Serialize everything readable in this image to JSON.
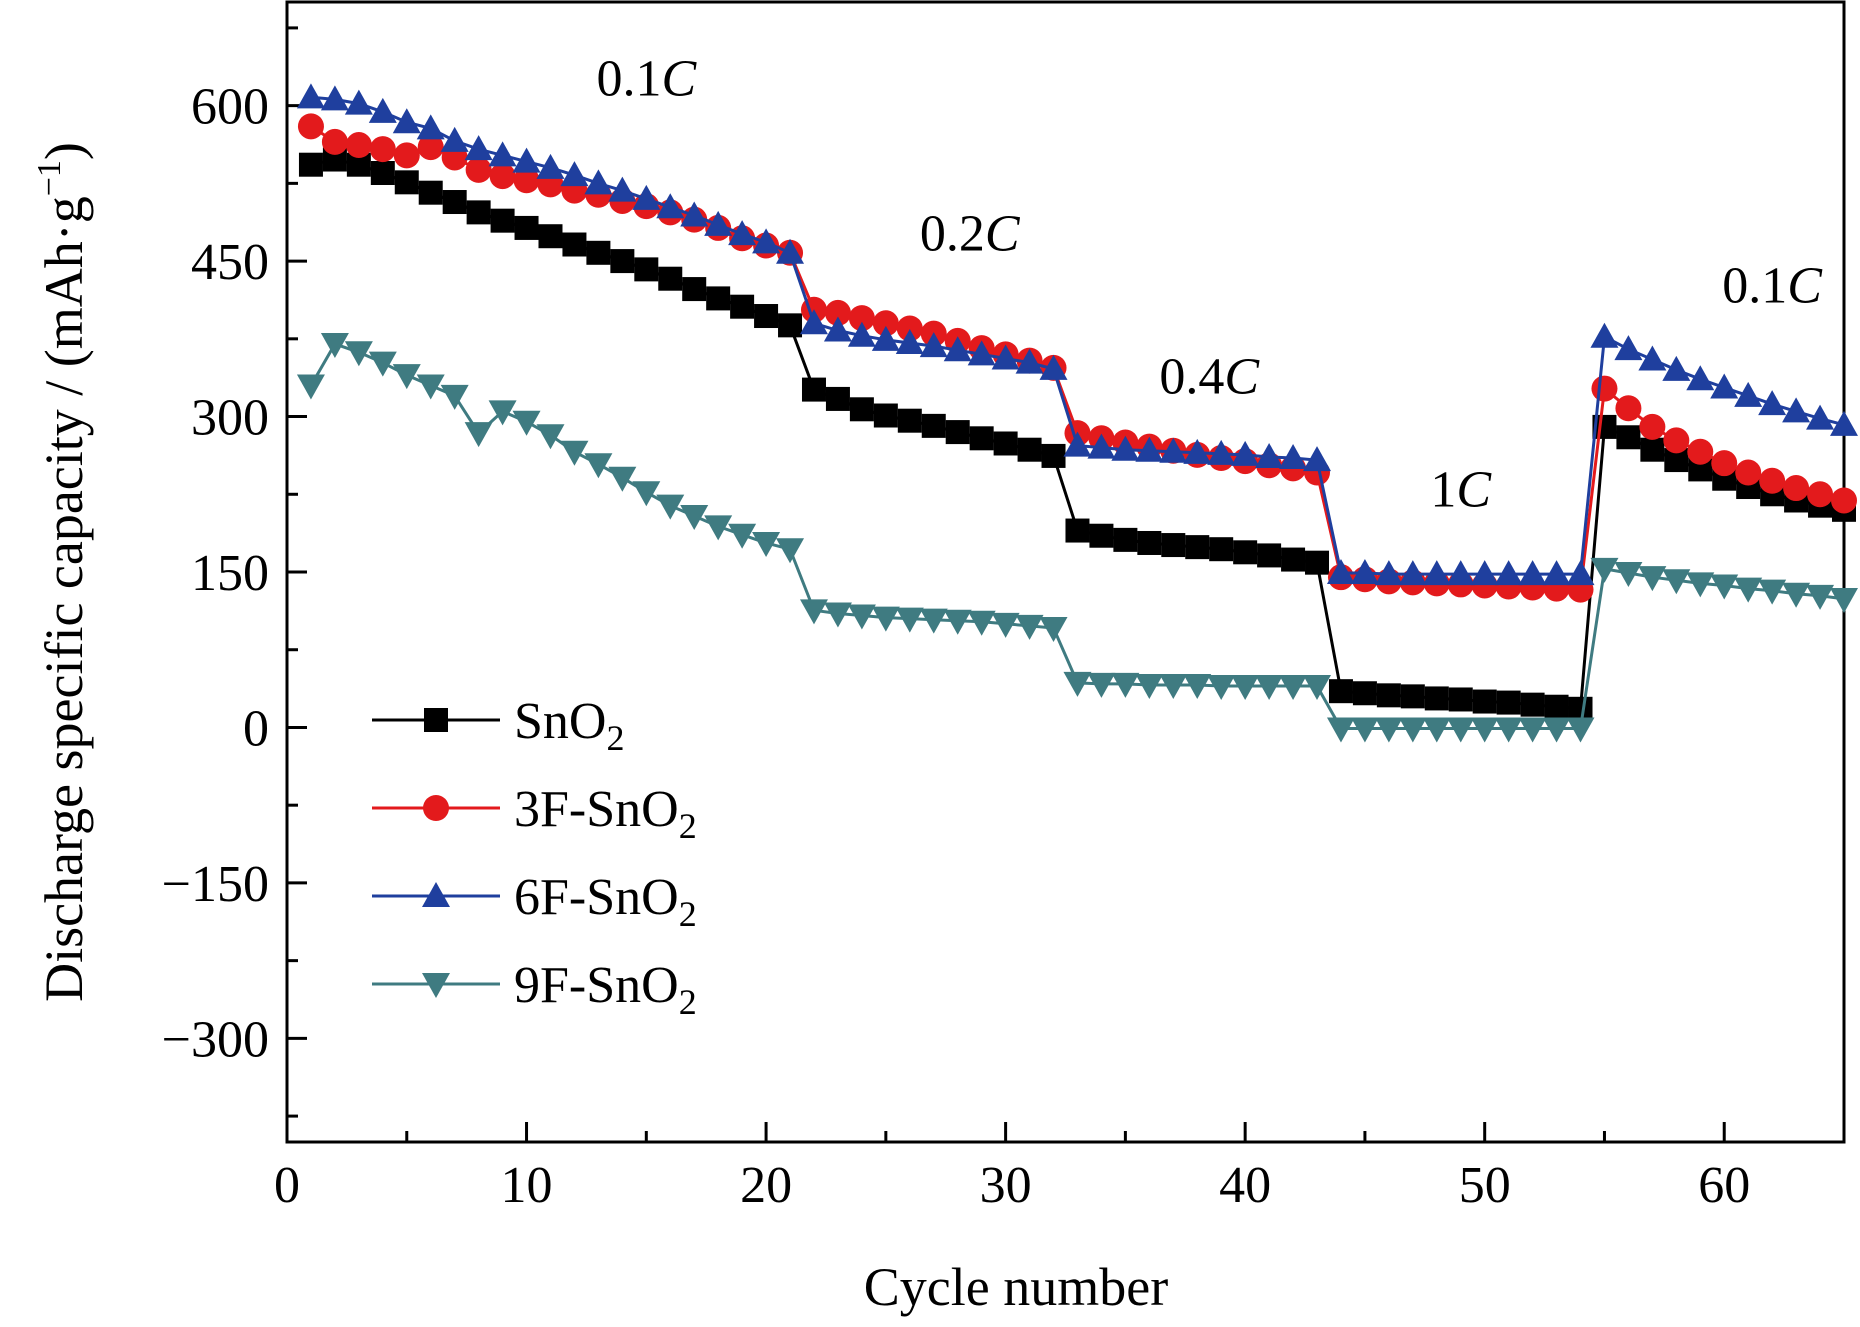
{
  "chart_data": {
    "type": "line",
    "title": "",
    "xlabel": "Cycle number",
    "ylabel": "Discharge specific capacity / (mAh·g",
    "ylabel_sup": "−1",
    "ylabel_close": ")",
    "xlim": [
      0,
      65
    ],
    "ylim": [
      -400,
      700
    ],
    "xticks": [
      0,
      10,
      20,
      30,
      40,
      50,
      60
    ],
    "yticks": [
      -300,
      -150,
      0,
      150,
      300,
      450,
      600
    ],
    "ytick_labels": [
      "−300",
      "−150",
      "0",
      "150",
      "300",
      "450",
      "600"
    ],
    "grid": false,
    "legend_position": "lower-left",
    "annotations": [
      {
        "x": 15,
        "y": 610,
        "num": "0.1",
        "unit": "C"
      },
      {
        "x": 28.5,
        "y": 460,
        "num": "0.2",
        "unit": "C"
      },
      {
        "x": 38.5,
        "y": 322,
        "num": "0.4",
        "unit": "C"
      },
      {
        "x": 49,
        "y": 213,
        "num": "1",
        "unit": "C"
      },
      {
        "x": 62,
        "y": 410,
        "num": "0.1",
        "unit": "C"
      }
    ],
    "x": [
      1,
      2,
      3,
      4,
      5,
      6,
      7,
      8,
      9,
      10,
      11,
      12,
      13,
      14,
      15,
      16,
      17,
      18,
      19,
      20,
      21,
      22,
      23,
      24,
      25,
      26,
      27,
      28,
      29,
      30,
      31,
      32,
      33,
      34,
      35,
      36,
      37,
      38,
      39,
      40,
      41,
      42,
      43,
      44,
      45,
      46,
      47,
      48,
      49,
      50,
      51,
      52,
      53,
      54,
      55,
      56,
      57,
      58,
      59,
      60,
      61,
      62,
      63,
      64,
      65
    ],
    "series": [
      {
        "name": "SnO",
        "name_sub": "2",
        "color": "#000000",
        "marker": "square",
        "values": [
          543,
          548,
          543,
          535,
          526,
          516,
          507,
          497,
          489,
          482,
          474,
          466,
          458,
          450,
          442,
          433,
          423,
          414,
          406,
          397,
          388,
          326,
          317,
          307,
          301,
          296,
          291,
          285,
          279,
          274,
          268,
          262,
          190,
          185,
          181,
          178,
          176,
          174,
          172,
          169,
          166,
          162,
          159,
          35,
          33,
          31,
          30,
          28,
          27,
          25,
          24,
          22,
          20,
          18,
          290,
          280,
          268,
          258,
          249,
          240,
          232,
          225,
          219,
          214,
          210
        ]
      },
      {
        "name": "3F-SnO",
        "name_sub": "2",
        "color": "#e31a1c",
        "marker": "circle",
        "values": [
          580,
          565,
          562,
          558,
          552,
          560,
          550,
          538,
          532,
          528,
          524,
          518,
          514,
          508,
          503,
          497,
          490,
          482,
          472,
          465,
          458,
          403,
          400,
          395,
          390,
          385,
          380,
          373,
          366,
          360,
          354,
          347,
          284,
          279,
          275,
          271,
          267,
          263,
          260,
          257,
          253,
          250,
          246,
          145,
          143,
          141,
          140,
          139,
          138,
          137,
          136,
          135,
          134,
          133,
          327,
          308,
          290,
          277,
          266,
          255,
          246,
          238,
          231,
          225,
          219
        ]
      },
      {
        "name": "6F-SnO",
        "name_sub": "2",
        "color": "#1f3f9e",
        "marker": "triangle-up",
        "values": [
          608,
          606,
          602,
          594,
          584,
          578,
          566,
          558,
          552,
          546,
          540,
          533,
          525,
          518,
          510,
          502,
          494,
          485,
          476,
          468,
          458,
          390,
          383,
          378,
          374,
          371,
          368,
          364,
          360,
          356,
          352,
          346,
          272,
          270,
          268,
          267,
          266,
          265,
          264,
          263,
          261,
          260,
          258,
          149,
          149,
          148,
          148,
          148,
          148,
          148,
          148,
          148,
          148,
          148,
          377,
          365,
          355,
          345,
          336,
          328,
          320,
          312,
          305,
          298,
          292
        ]
      },
      {
        "name": "9F-SnO",
        "name_sub": "2",
        "color": "#3f7b81",
        "marker": "triangle-down",
        "values": [
          330,
          370,
          362,
          352,
          340,
          330,
          320,
          284,
          305,
          295,
          282,
          266,
          254,
          241,
          227,
          214,
          204,
          194,
          186,
          178,
          172,
          113,
          110,
          108,
          106,
          105,
          104,
          103,
          102,
          100,
          98,
          96,
          43,
          42,
          42,
          41,
          41,
          41,
          40,
          40,
          40,
          40,
          40,
          -1,
          -1,
          -1,
          -1,
          -1,
          -1,
          -1,
          -1,
          -1,
          -1,
          -1,
          153,
          149,
          145,
          142,
          139,
          137,
          134,
          132,
          129,
          127,
          124
        ]
      }
    ]
  }
}
